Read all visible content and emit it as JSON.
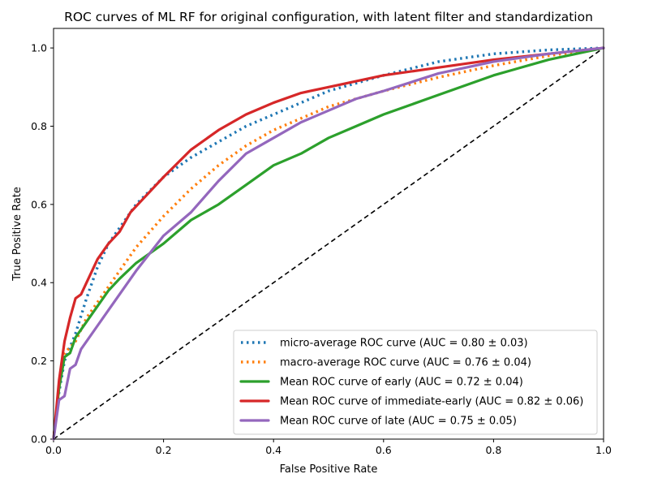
{
  "chart_data": {
    "type": "line",
    "title": "ROC curves of ML RF for original configuration, with latent filter and standardization",
    "xlabel": "False Positive Rate",
    "ylabel": "True Positive Rate",
    "xlim": [
      0.0,
      1.0
    ],
    "ylim": [
      0.0,
      1.05
    ],
    "xticks": [
      "0.0",
      "0.2",
      "0.4",
      "0.6",
      "0.8",
      "1.0"
    ],
    "yticks": [
      "0.0",
      "0.2",
      "0.4",
      "0.6",
      "0.8",
      "1.0"
    ],
    "grid": false,
    "legend_position": "lower-right",
    "series": [
      {
        "name": "micro-average ROC curve (AUC = 0.80 ± 0.03)",
        "color": "#1f77b4",
        "style": "dotted",
        "x": [
          0.0,
          0.01,
          0.02,
          0.04,
          0.06,
          0.08,
          0.1,
          0.12,
          0.15,
          0.2,
          0.25,
          0.3,
          0.35,
          0.4,
          0.45,
          0.5,
          0.6,
          0.7,
          0.8,
          0.9,
          1.0
        ],
        "y": [
          0.0,
          0.12,
          0.2,
          0.27,
          0.36,
          0.44,
          0.5,
          0.54,
          0.6,
          0.67,
          0.72,
          0.76,
          0.8,
          0.83,
          0.86,
          0.89,
          0.93,
          0.965,
          0.985,
          0.995,
          1.0
        ]
      },
      {
        "name": "macro-average ROC curve (AUC = 0.76 ± 0.04)",
        "color": "#ff7f0e",
        "style": "dotted",
        "x": [
          0.0,
          0.01,
          0.02,
          0.04,
          0.06,
          0.08,
          0.1,
          0.12,
          0.15,
          0.2,
          0.25,
          0.3,
          0.35,
          0.4,
          0.45,
          0.5,
          0.6,
          0.7,
          0.8,
          0.9,
          1.0
        ],
        "y": [
          0.0,
          0.13,
          0.22,
          0.25,
          0.31,
          0.35,
          0.39,
          0.43,
          0.49,
          0.57,
          0.64,
          0.7,
          0.75,
          0.79,
          0.82,
          0.85,
          0.89,
          0.925,
          0.955,
          0.98,
          1.0
        ]
      },
      {
        "name": "Mean ROC curve of early (AUC = 0.72 ± 0.04)",
        "color": "#2ca02c",
        "style": "solid",
        "x": [
          0.0,
          0.01,
          0.02,
          0.03,
          0.04,
          0.06,
          0.08,
          0.1,
          0.12,
          0.15,
          0.2,
          0.25,
          0.3,
          0.35,
          0.4,
          0.45,
          0.5,
          0.55,
          0.6,
          0.7,
          0.8,
          0.9,
          1.0
        ],
        "y": [
          0.0,
          0.13,
          0.21,
          0.22,
          0.26,
          0.3,
          0.34,
          0.38,
          0.41,
          0.45,
          0.5,
          0.56,
          0.6,
          0.65,
          0.7,
          0.73,
          0.77,
          0.8,
          0.83,
          0.88,
          0.93,
          0.97,
          1.0
        ]
      },
      {
        "name": "Mean ROC curve of immediate-early (AUC = 0.82 ± 0.06)",
        "color": "#d62728",
        "style": "solid",
        "x": [
          0.0,
          0.01,
          0.02,
          0.03,
          0.04,
          0.05,
          0.06,
          0.08,
          0.1,
          0.12,
          0.14,
          0.16,
          0.2,
          0.25,
          0.3,
          0.35,
          0.4,
          0.45,
          0.5,
          0.6,
          0.7,
          0.8,
          0.9,
          1.0
        ],
        "y": [
          0.0,
          0.15,
          0.25,
          0.31,
          0.36,
          0.37,
          0.4,
          0.46,
          0.5,
          0.53,
          0.58,
          0.61,
          0.67,
          0.74,
          0.79,
          0.83,
          0.86,
          0.885,
          0.9,
          0.93,
          0.95,
          0.97,
          0.985,
          1.0
        ]
      },
      {
        "name": "Mean ROC curve of late (AUC = 0.75 ± 0.05)",
        "color": "#9467bd",
        "style": "solid",
        "x": [
          0.0,
          0.01,
          0.02,
          0.03,
          0.04,
          0.05,
          0.06,
          0.08,
          0.1,
          0.12,
          0.15,
          0.2,
          0.25,
          0.3,
          0.35,
          0.4,
          0.45,
          0.5,
          0.55,
          0.6,
          0.7,
          0.8,
          0.9,
          1.0
        ],
        "y": [
          0.0,
          0.1,
          0.11,
          0.18,
          0.19,
          0.23,
          0.25,
          0.29,
          0.33,
          0.37,
          0.43,
          0.52,
          0.58,
          0.66,
          0.73,
          0.77,
          0.81,
          0.84,
          0.87,
          0.89,
          0.935,
          0.965,
          0.985,
          1.0
        ]
      }
    ],
    "reference_line": {
      "name": "chance diagonal",
      "color": "#000000",
      "style": "dashed",
      "x": [
        0.0,
        1.0
      ],
      "y": [
        0.0,
        1.0
      ]
    }
  }
}
